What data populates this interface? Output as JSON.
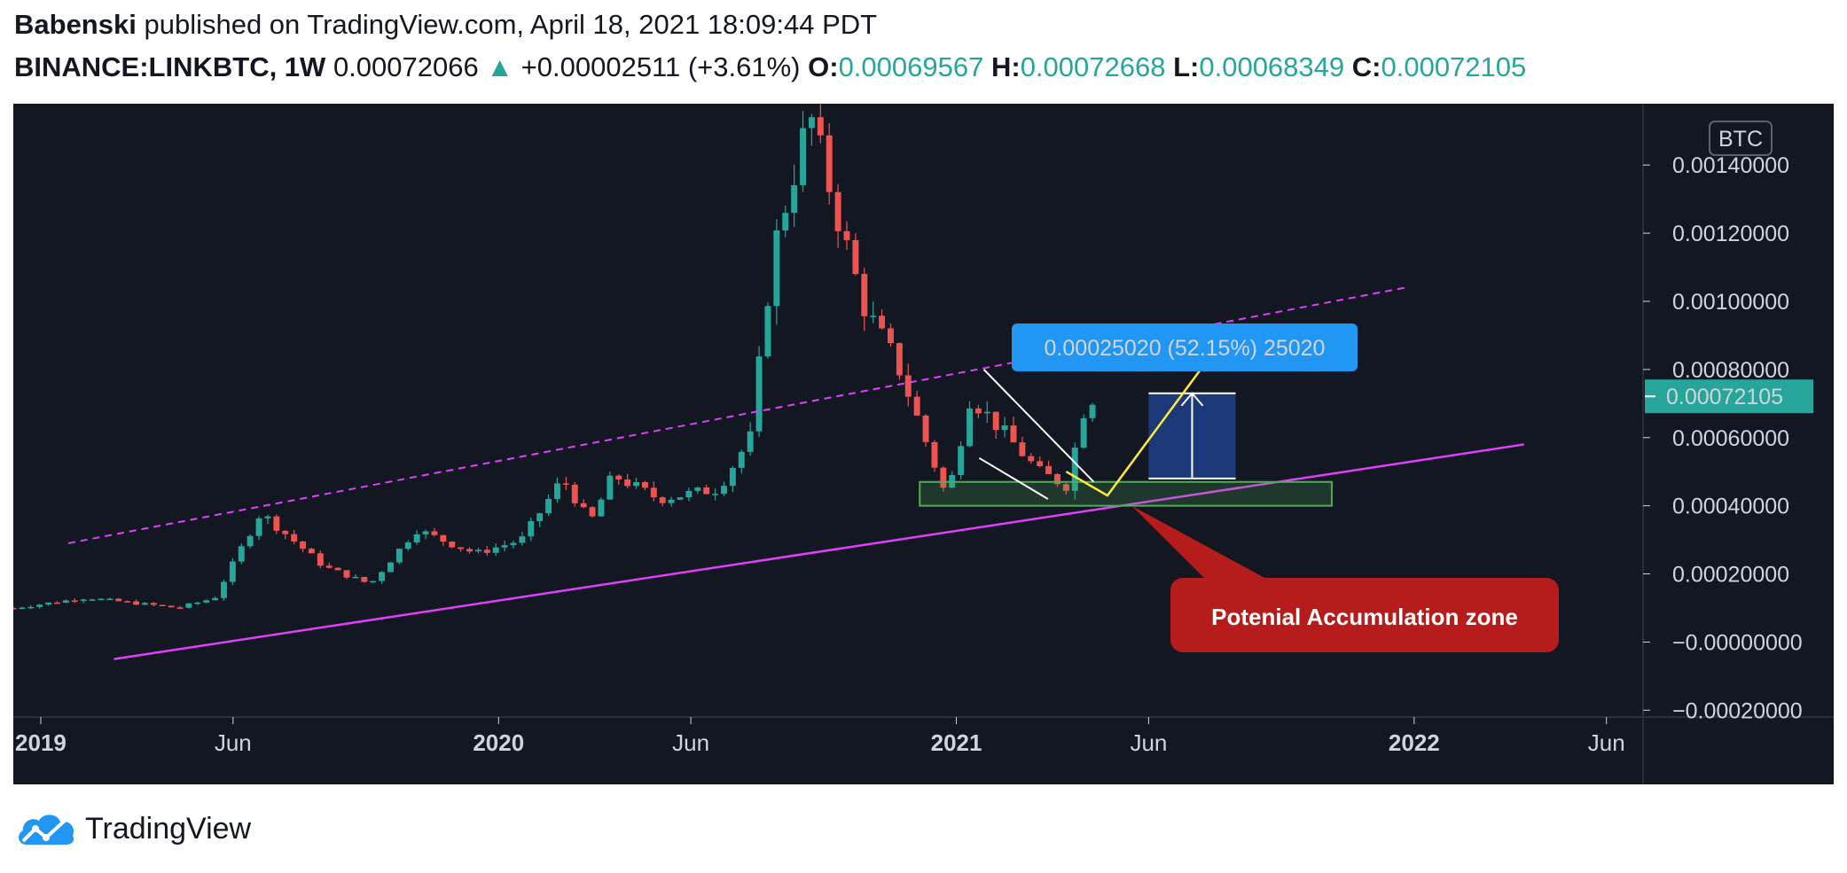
{
  "header": {
    "author": "Babenski",
    "published": "published on TradingView.com, April 18, 2021 18:09:44 PDT",
    "symbol": "BINANCE:LINKBTC, 1W",
    "price": "0.00072066",
    "change_arrow": "▲",
    "change": "+0.00002511 (+3.61%)",
    "ohlc": [
      {
        "key": "O:",
        "value": "0.00069567"
      },
      {
        "key": "H:",
        "value": "0.00072668"
      },
      {
        "key": "L:",
        "value": "0.00068349"
      },
      {
        "key": "C:",
        "value": "0.00072105"
      }
    ]
  },
  "footer": {
    "brand": "TradingView",
    "logo_icon": "tradingview-cloud-icon"
  },
  "colors": {
    "background": "#131722",
    "up": "#26a69a",
    "down": "#ef5350",
    "trendline": "#e040fb",
    "measure_label": "#2196f3",
    "callout": "#b71c1c",
    "zone": "#4caf50",
    "target_box": "#1e3f8a",
    "projection": "#ffeb3b"
  },
  "chart_data": {
    "type": "candlestick",
    "interval": "1W",
    "currency_label": "BTC",
    "ylim": [
      -0.00022,
      0.00158
    ],
    "y_ticks": [
      {
        "v": 0.0014,
        "label": "0.00140000"
      },
      {
        "v": 0.0012,
        "label": "0.00120000"
      },
      {
        "v": 0.001,
        "label": "0.00100000"
      },
      {
        "v": 0.0008,
        "label": "0.00080000"
      },
      {
        "v": 0.0006,
        "label": "0.00060000"
      },
      {
        "v": 0.0004,
        "label": "0.00040000"
      },
      {
        "v": 0.0002,
        "label": "0.00020000"
      },
      {
        "v": 0.0,
        "label": "−0.00000000"
      },
      {
        "v": -0.0002,
        "label": "−0.00020000"
      }
    ],
    "x_ticks": [
      {
        "t": 2019.0,
        "label": "2019",
        "bold": true
      },
      {
        "t": 2019.42,
        "label": "Jun",
        "bold": false
      },
      {
        "t": 2020.0,
        "label": "2020",
        "bold": true
      },
      {
        "t": 2020.42,
        "label": "Jun",
        "bold": false
      },
      {
        "t": 2021.0,
        "label": "2021",
        "bold": true
      },
      {
        "t": 2021.42,
        "label": "Jun",
        "bold": false
      },
      {
        "t": 2022.0,
        "label": "2022",
        "bold": true
      },
      {
        "t": 2022.42,
        "label": "Jun",
        "bold": false
      }
    ],
    "last_price": {
      "value": 0.00072105,
      "label": "0.00072105"
    },
    "series": [
      {
        "name": "LINKBTC",
        "path": [
          [
            2018.94,
            0.0001
          ],
          [
            2019.1,
            0.00013
          ],
          [
            2019.3,
            0.0001
          ],
          [
            2019.38,
            0.00013
          ],
          [
            2019.48,
            0.00038
          ],
          [
            2019.62,
            0.00022
          ],
          [
            2019.72,
            0.00017
          ],
          [
            2019.82,
            0.00033
          ],
          [
            2019.95,
            0.00026
          ],
          [
            2020.05,
            0.0003
          ],
          [
            2020.14,
            0.00048
          ],
          [
            2020.2,
            0.00035
          ],
          [
            2020.25,
            0.00049
          ],
          [
            2020.35,
            0.00042
          ],
          [
            2020.48,
            0.00045
          ],
          [
            2020.55,
            0.0006
          ],
          [
            2020.6,
            0.00115
          ],
          [
            2020.68,
            0.00155
          ],
          [
            2020.74,
            0.00125
          ],
          [
            2020.8,
            0.00098
          ],
          [
            2020.87,
            0.00082
          ],
          [
            2020.93,
            0.0006
          ],
          [
            2020.98,
            0.00042
          ],
          [
            2021.03,
            0.00072
          ],
          [
            2021.1,
            0.00062
          ],
          [
            2021.18,
            0.0005
          ],
          [
            2021.24,
            0.00046
          ],
          [
            2021.28,
            0.00069
          ],
          [
            2021.3,
            0.000721
          ]
        ]
      }
    ],
    "annotations": {
      "measure_label": "0.00025020 (52.15%) 25020",
      "callout_label": "Potenial Accumulation zone",
      "support_trendline": [
        [
          2019.16,
          -5e-05
        ],
        [
          2022.24,
          0.00058
        ]
      ],
      "upper_channel": [
        [
          2019.06,
          0.00029
        ],
        [
          2021.98,
          0.00104
        ]
      ],
      "accumulation_zone": {
        "t1": 2020.92,
        "t2": 2021.82,
        "v1": 0.0004,
        "v2": 0.00047
      },
      "wedge_upper": [
        [
          2021.06,
          0.0008
        ],
        [
          2021.3,
          0.00047
        ]
      ],
      "wedge_lower": [
        [
          2021.05,
          0.00054
        ],
        [
          2021.2,
          0.00042
        ]
      ],
      "projection_path": [
        [
          2021.24,
          0.0005
        ],
        [
          2021.33,
          0.00043
        ],
        [
          2021.55,
          0.00083
        ]
      ],
      "target_box": {
        "t1": 2021.42,
        "t2": 2021.61,
        "v1": 0.00048,
        "v2": 0.00073
      }
    }
  }
}
